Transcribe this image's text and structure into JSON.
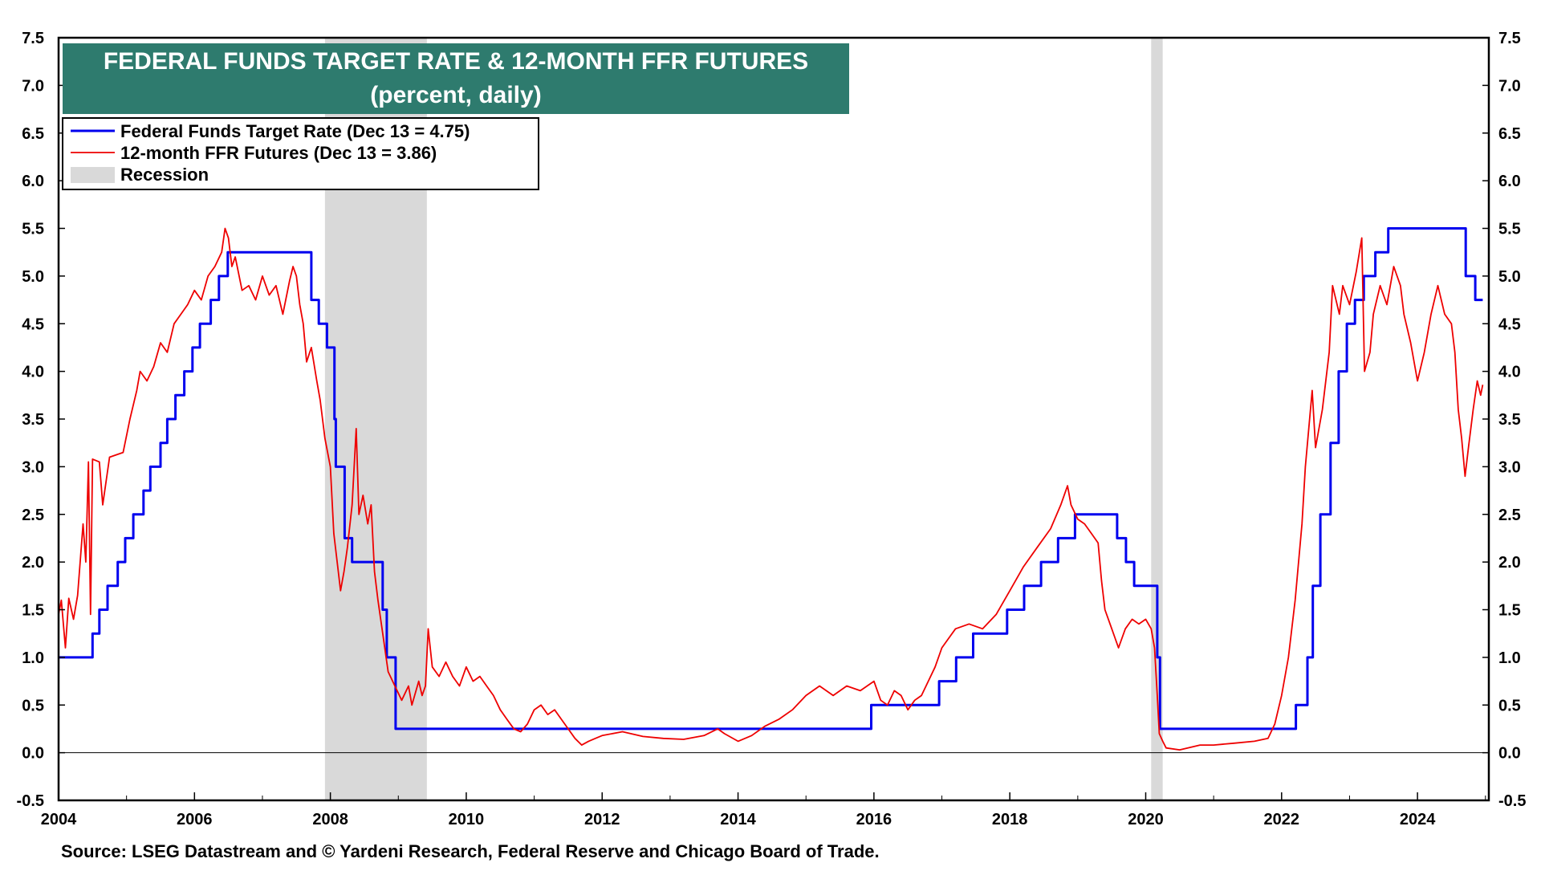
{
  "chart_data": {
    "type": "line",
    "title": "FEDERAL FUNDS TARGET RATE & 12-MONTH FFR FUTURES",
    "subtitle": "(percent, daily)",
    "source": "Source: LSEG Datastream and © Yardeni Research, Federal Reserve and Chicago Board of Trade.",
    "xlim": [
      2004,
      2025.05
    ],
    "ylim": [
      -0.5,
      7.5
    ],
    "x_ticks": [
      2004,
      2006,
      2008,
      2010,
      2012,
      2014,
      2016,
      2018,
      2020,
      2022,
      2024
    ],
    "x_tick_labels": [
      "2004",
      "2006",
      "2008",
      "2010",
      "2012",
      "2014",
      "2016",
      "2018",
      "2020",
      "2022",
      "2024"
    ],
    "y_ticks": [
      -0.5,
      0.0,
      0.5,
      1.0,
      1.5,
      2.0,
      2.5,
      3.0,
      3.5,
      4.0,
      4.5,
      5.0,
      5.5,
      6.0,
      6.5,
      7.0,
      7.5
    ],
    "y_tick_labels": [
      "-0.5",
      "0.0",
      "0.5",
      "1.0",
      "1.5",
      "2.0",
      "2.5",
      "3.0",
      "3.5",
      "4.0",
      "4.5",
      "5.0",
      "5.5",
      "6.0",
      "6.5",
      "7.0",
      "7.5"
    ],
    "grid": false,
    "legend_position": "top-left",
    "legend": [
      {
        "label": "Federal Funds Target Rate (Dec 13 = 4.75)",
        "color": "#0000ee",
        "kind": "line"
      },
      {
        "label": "12-month FFR Futures (Dec 13 = 3.86)",
        "color": "#ee0000",
        "kind": "line"
      },
      {
        "label": "Recession",
        "color": "#d9d9d9",
        "kind": "patch"
      }
    ],
    "recessions": [
      [
        2007.92,
        2009.42
      ],
      [
        2020.08,
        2020.25
      ]
    ],
    "series": [
      {
        "name": "Federal Funds Target Rate (Dec 13 = 4.75)",
        "color": "#0000ee",
        "step": true,
        "points": [
          [
            2004.0,
            1.0
          ],
          [
            2004.5,
            1.25
          ],
          [
            2004.6,
            1.5
          ],
          [
            2004.72,
            1.75
          ],
          [
            2004.87,
            2.0
          ],
          [
            2004.98,
            2.25
          ],
          [
            2005.1,
            2.5
          ],
          [
            2005.25,
            2.75
          ],
          [
            2005.35,
            3.0
          ],
          [
            2005.5,
            3.25
          ],
          [
            2005.6,
            3.5
          ],
          [
            2005.72,
            3.75
          ],
          [
            2005.85,
            4.0
          ],
          [
            2005.97,
            4.25
          ],
          [
            2006.08,
            4.5
          ],
          [
            2006.24,
            4.75
          ],
          [
            2006.36,
            5.0
          ],
          [
            2006.49,
            5.25
          ],
          [
            2007.72,
            4.75
          ],
          [
            2007.83,
            4.5
          ],
          [
            2007.95,
            4.25
          ],
          [
            2008.06,
            3.5
          ],
          [
            2008.08,
            3.0
          ],
          [
            2008.21,
            2.25
          ],
          [
            2008.32,
            2.0
          ],
          [
            2008.77,
            1.5
          ],
          [
            2008.83,
            1.0
          ],
          [
            2008.96,
            0.25
          ],
          [
            2015.96,
            0.5
          ],
          [
            2016.96,
            0.75
          ],
          [
            2017.21,
            1.0
          ],
          [
            2017.46,
            1.25
          ],
          [
            2017.96,
            1.5
          ],
          [
            2018.21,
            1.75
          ],
          [
            2018.46,
            2.0
          ],
          [
            2018.71,
            2.25
          ],
          [
            2018.96,
            2.5
          ],
          [
            2019.58,
            2.25
          ],
          [
            2019.71,
            2.0
          ],
          [
            2019.83,
            1.75
          ],
          [
            2020.17,
            1.0
          ],
          [
            2020.21,
            0.25
          ],
          [
            2022.21,
            0.5
          ],
          [
            2022.38,
            1.0
          ],
          [
            2022.46,
            1.75
          ],
          [
            2022.57,
            2.5
          ],
          [
            2022.72,
            3.25
          ],
          [
            2022.84,
            4.0
          ],
          [
            2022.96,
            4.5
          ],
          [
            2023.08,
            4.75
          ],
          [
            2023.21,
            5.0
          ],
          [
            2023.38,
            5.25
          ],
          [
            2023.57,
            5.5
          ],
          [
            2024.71,
            5.0
          ],
          [
            2024.85,
            4.75
          ],
          [
            2024.96,
            4.75
          ]
        ]
      },
      {
        "name": "12-month FFR Futures (Dec 13 = 3.86)",
        "color": "#ee0000",
        "step": false,
        "points": [
          [
            2004.0,
            1.45
          ],
          [
            2004.04,
            1.6
          ],
          [
            2004.1,
            1.1
          ],
          [
            2004.15,
            1.62
          ],
          [
            2004.22,
            1.4
          ],
          [
            2004.28,
            1.65
          ],
          [
            2004.36,
            2.4
          ],
          [
            2004.4,
            2.0
          ],
          [
            2004.44,
            3.05
          ],
          [
            2004.47,
            1.45
          ],
          [
            2004.5,
            3.08
          ],
          [
            2004.6,
            3.05
          ],
          [
            2004.65,
            2.6
          ],
          [
            2004.75,
            3.1
          ],
          [
            2004.95,
            3.15
          ],
          [
            2005.05,
            3.5
          ],
          [
            2005.15,
            3.8
          ],
          [
            2005.2,
            4.0
          ],
          [
            2005.3,
            3.9
          ],
          [
            2005.4,
            4.05
          ],
          [
            2005.5,
            4.3
          ],
          [
            2005.6,
            4.2
          ],
          [
            2005.7,
            4.5
          ],
          [
            2005.8,
            4.6
          ],
          [
            2005.9,
            4.7
          ],
          [
            2006.0,
            4.85
          ],
          [
            2006.1,
            4.75
          ],
          [
            2006.2,
            5.0
          ],
          [
            2006.3,
            5.1
          ],
          [
            2006.4,
            5.25
          ],
          [
            2006.45,
            5.5
          ],
          [
            2006.5,
            5.4
          ],
          [
            2006.55,
            5.1
          ],
          [
            2006.6,
            5.2
          ],
          [
            2006.7,
            4.85
          ],
          [
            2006.8,
            4.9
          ],
          [
            2006.9,
            4.75
          ],
          [
            2007.0,
            5.0
          ],
          [
            2007.1,
            4.8
          ],
          [
            2007.2,
            4.9
          ],
          [
            2007.3,
            4.6
          ],
          [
            2007.4,
            4.95
          ],
          [
            2007.45,
            5.1
          ],
          [
            2007.5,
            5.0
          ],
          [
            2007.55,
            4.7
          ],
          [
            2007.6,
            4.5
          ],
          [
            2007.65,
            4.1
          ],
          [
            2007.72,
            4.25
          ],
          [
            2007.8,
            3.9
          ],
          [
            2007.85,
            3.7
          ],
          [
            2007.92,
            3.3
          ],
          [
            2008.0,
            3.0
          ],
          [
            2008.05,
            2.3
          ],
          [
            2008.1,
            2.0
          ],
          [
            2008.15,
            1.7
          ],
          [
            2008.2,
            1.9
          ],
          [
            2008.25,
            2.15
          ],
          [
            2008.32,
            2.6
          ],
          [
            2008.38,
            3.4
          ],
          [
            2008.42,
            2.5
          ],
          [
            2008.48,
            2.7
          ],
          [
            2008.55,
            2.4
          ],
          [
            2008.6,
            2.6
          ],
          [
            2008.65,
            1.9
          ],
          [
            2008.7,
            1.6
          ],
          [
            2008.78,
            1.2
          ],
          [
            2008.85,
            0.85
          ],
          [
            2008.95,
            0.7
          ],
          [
            2009.05,
            0.55
          ],
          [
            2009.15,
            0.7
          ],
          [
            2009.2,
            0.5
          ],
          [
            2009.3,
            0.75
          ],
          [
            2009.35,
            0.6
          ],
          [
            2009.4,
            0.7
          ],
          [
            2009.44,
            1.3
          ],
          [
            2009.5,
            0.9
          ],
          [
            2009.6,
            0.8
          ],
          [
            2009.7,
            0.95
          ],
          [
            2009.8,
            0.8
          ],
          [
            2009.9,
            0.7
          ],
          [
            2010.0,
            0.9
          ],
          [
            2010.1,
            0.75
          ],
          [
            2010.2,
            0.8
          ],
          [
            2010.3,
            0.7
          ],
          [
            2010.4,
            0.6
          ],
          [
            2010.5,
            0.45
          ],
          [
            2010.6,
            0.35
          ],
          [
            2010.7,
            0.25
          ],
          [
            2010.8,
            0.22
          ],
          [
            2010.9,
            0.3
          ],
          [
            2011.0,
            0.45
          ],
          [
            2011.1,
            0.5
          ],
          [
            2011.2,
            0.4
          ],
          [
            2011.3,
            0.45
          ],
          [
            2011.4,
            0.35
          ],
          [
            2011.5,
            0.25
          ],
          [
            2011.6,
            0.15
          ],
          [
            2011.7,
            0.08
          ],
          [
            2011.8,
            0.12
          ],
          [
            2011.9,
            0.15
          ],
          [
            2012.0,
            0.18
          ],
          [
            2012.3,
            0.22
          ],
          [
            2012.6,
            0.17
          ],
          [
            2012.9,
            0.15
          ],
          [
            2013.2,
            0.14
          ],
          [
            2013.5,
            0.18
          ],
          [
            2013.7,
            0.25
          ],
          [
            2013.8,
            0.2
          ],
          [
            2014.0,
            0.12
          ],
          [
            2014.2,
            0.18
          ],
          [
            2014.4,
            0.28
          ],
          [
            2014.6,
            0.35
          ],
          [
            2014.8,
            0.45
          ],
          [
            2015.0,
            0.6
          ],
          [
            2015.2,
            0.7
          ],
          [
            2015.4,
            0.6
          ],
          [
            2015.6,
            0.7
          ],
          [
            2015.8,
            0.65
          ],
          [
            2016.0,
            0.75
          ],
          [
            2016.1,
            0.55
          ],
          [
            2016.2,
            0.5
          ],
          [
            2016.3,
            0.65
          ],
          [
            2016.4,
            0.6
          ],
          [
            2016.5,
            0.45
          ],
          [
            2016.6,
            0.55
          ],
          [
            2016.7,
            0.6
          ],
          [
            2016.8,
            0.75
          ],
          [
            2016.9,
            0.9
          ],
          [
            2017.0,
            1.1
          ],
          [
            2017.1,
            1.2
          ],
          [
            2017.2,
            1.3
          ],
          [
            2017.4,
            1.35
          ],
          [
            2017.6,
            1.3
          ],
          [
            2017.8,
            1.45
          ],
          [
            2018.0,
            1.7
          ],
          [
            2018.2,
            1.95
          ],
          [
            2018.4,
            2.15
          ],
          [
            2018.6,
            2.35
          ],
          [
            2018.75,
            2.6
          ],
          [
            2018.85,
            2.8
          ],
          [
            2018.9,
            2.6
          ],
          [
            2019.0,
            2.45
          ],
          [
            2019.1,
            2.4
          ],
          [
            2019.2,
            2.3
          ],
          [
            2019.3,
            2.2
          ],
          [
            2019.35,
            1.8
          ],
          [
            2019.4,
            1.5
          ],
          [
            2019.5,
            1.3
          ],
          [
            2019.6,
            1.1
          ],
          [
            2019.7,
            1.3
          ],
          [
            2019.8,
            1.4
          ],
          [
            2019.9,
            1.35
          ],
          [
            2020.0,
            1.4
          ],
          [
            2020.08,
            1.3
          ],
          [
            2020.13,
            1.1
          ],
          [
            2020.17,
            0.6
          ],
          [
            2020.2,
            0.2
          ],
          [
            2020.25,
            0.12
          ],
          [
            2020.3,
            0.05
          ],
          [
            2020.5,
            0.03
          ],
          [
            2020.8,
            0.08
          ],
          [
            2021.0,
            0.08
          ],
          [
            2021.3,
            0.1
          ],
          [
            2021.6,
            0.12
          ],
          [
            2021.8,
            0.15
          ],
          [
            2021.9,
            0.3
          ],
          [
            2022.0,
            0.6
          ],
          [
            2022.1,
            1.0
          ],
          [
            2022.2,
            1.6
          ],
          [
            2022.3,
            2.4
          ],
          [
            2022.35,
            3.0
          ],
          [
            2022.45,
            3.8
          ],
          [
            2022.5,
            3.2
          ],
          [
            2022.6,
            3.6
          ],
          [
            2022.7,
            4.2
          ],
          [
            2022.75,
            4.9
          ],
          [
            2022.85,
            4.6
          ],
          [
            2022.9,
            4.9
          ],
          [
            2023.0,
            4.7
          ],
          [
            2023.1,
            5.05
          ],
          [
            2023.18,
            5.4
          ],
          [
            2023.22,
            4.0
          ],
          [
            2023.3,
            4.2
          ],
          [
            2023.35,
            4.6
          ],
          [
            2023.45,
            4.9
          ],
          [
            2023.55,
            4.7
          ],
          [
            2023.65,
            5.1
          ],
          [
            2023.75,
            4.9
          ],
          [
            2023.8,
            4.6
          ],
          [
            2023.9,
            4.3
          ],
          [
            2024.0,
            3.9
          ],
          [
            2024.1,
            4.2
          ],
          [
            2024.2,
            4.6
          ],
          [
            2024.3,
            4.9
          ],
          [
            2024.4,
            4.6
          ],
          [
            2024.5,
            4.5
          ],
          [
            2024.55,
            4.2
          ],
          [
            2024.6,
            3.6
          ],
          [
            2024.65,
            3.3
          ],
          [
            2024.7,
            2.9
          ],
          [
            2024.75,
            3.2
          ],
          [
            2024.82,
            3.6
          ],
          [
            2024.88,
            3.9
          ],
          [
            2024.93,
            3.75
          ],
          [
            2024.96,
            3.86
          ]
        ]
      }
    ]
  }
}
